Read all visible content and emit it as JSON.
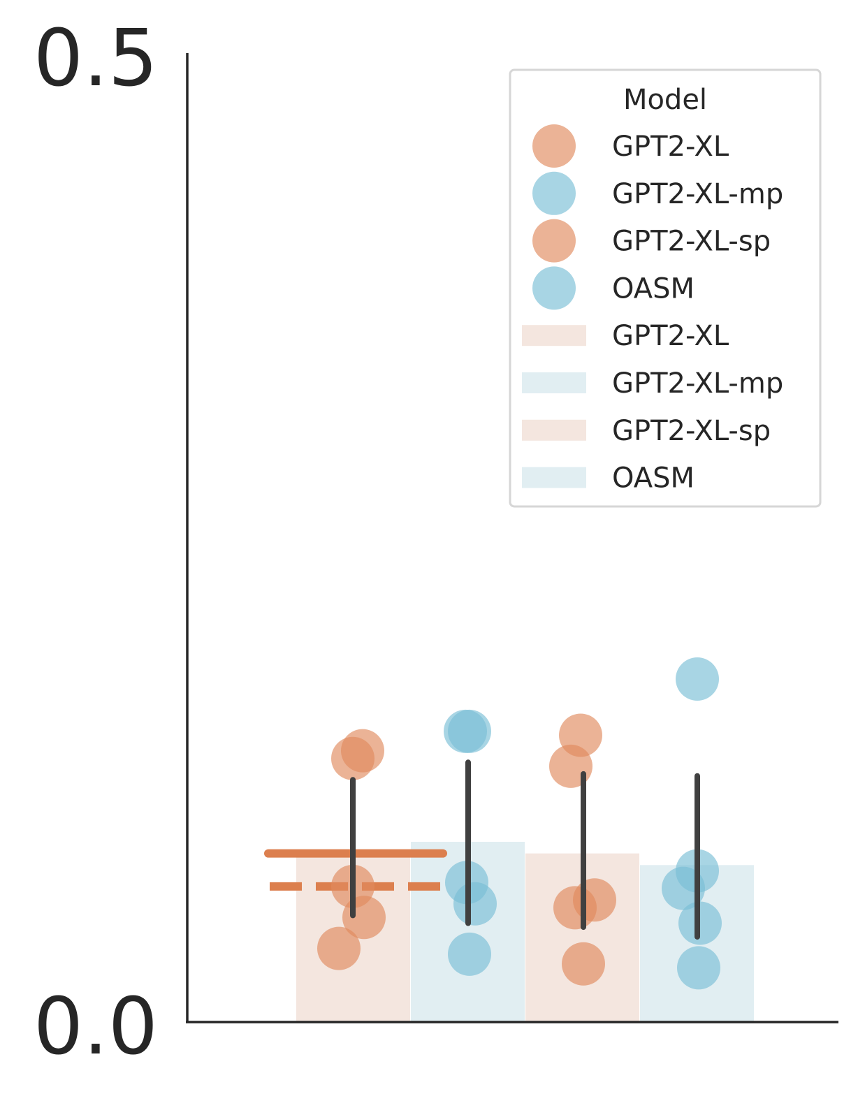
{
  "chart_data": {
    "type": "bar",
    "categories": [
      "GPT2-XL",
      "GPT2-XL-mp",
      "GPT2-XL-sp",
      "OASM"
    ],
    "ylim": [
      0,
      0.5
    ],
    "yticks": [
      "0.0",
      "0.5"
    ],
    "xlabel": "",
    "ylabel": "",
    "grid": false,
    "legend_position": "top-right",
    "legend_title": "Model",
    "bar_values": [
      0.085,
      0.093,
      0.087,
      0.081
    ],
    "error_bars": [
      {
        "low": 0.055,
        "high": 0.125
      },
      {
        "low": 0.051,
        "high": 0.134
      },
      {
        "low": 0.049,
        "high": 0.128
      },
      {
        "low": 0.044,
        "high": 0.127
      }
    ],
    "points": [
      [
        0.14,
        0.136,
        0.07,
        0.054,
        0.038
      ],
      [
        0.15,
        0.15,
        0.072,
        0.061,
        0.035
      ],
      [
        0.148,
        0.132,
        0.063,
        0.059,
        0.03
      ],
      [
        0.177,
        0.078,
        0.069,
        0.051,
        0.028
      ]
    ],
    "reference_lines": {
      "solid": 0.087,
      "dashed": 0.07
    },
    "colors": {
      "orange": "#e08a5e",
      "blue": "#79bfd6",
      "orange_bar": "#f4e6df",
      "blue_bar": "#e1eef2",
      "ref_line": "#dc7f4e",
      "error_bar": "#404040",
      "axis": "#262626"
    },
    "legend": [
      {
        "label": "GPT2-XL",
        "kind": "marker",
        "color": "orange"
      },
      {
        "label": "GPT2-XL-mp",
        "kind": "marker",
        "color": "blue"
      },
      {
        "label": "GPT2-XL-sp",
        "kind": "marker",
        "color": "orange"
      },
      {
        "label": "OASM",
        "kind": "marker",
        "color": "blue"
      },
      {
        "label": "GPT2-XL",
        "kind": "patch",
        "color": "orange_bar"
      },
      {
        "label": "GPT2-XL-mp",
        "kind": "patch",
        "color": "blue_bar"
      },
      {
        "label": "GPT2-XL-sp",
        "kind": "patch",
        "color": "orange_bar"
      },
      {
        "label": "OASM",
        "kind": "patch",
        "color": "blue_bar"
      }
    ]
  }
}
